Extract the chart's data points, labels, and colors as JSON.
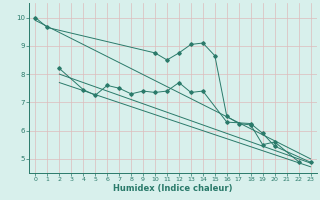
{
  "xlabel": "Humidex (Indice chaleur)",
  "bg_color": "#d8f0ec",
  "grid_color": "#ddbcbc",
  "line_color": "#2a7a6a",
  "xlim": [
    -0.5,
    23.5
  ],
  "ylim": [
    4.5,
    10.5
  ],
  "xticks": [
    0,
    1,
    2,
    3,
    4,
    5,
    6,
    7,
    8,
    9,
    10,
    11,
    12,
    13,
    14,
    15,
    16,
    17,
    18,
    19,
    20,
    21,
    22,
    23
  ],
  "yticks": [
    5,
    6,
    7,
    8,
    9,
    10
  ],
  "series1_x": [
    0,
    1,
    10,
    11,
    12,
    13,
    14,
    15,
    16,
    17,
    18,
    19,
    20,
    22
  ],
  "series1_y": [
    10.0,
    9.65,
    8.75,
    8.5,
    8.75,
    9.05,
    9.1,
    8.65,
    6.5,
    6.25,
    6.2,
    5.5,
    5.6,
    4.9
  ],
  "series2_x": [
    2,
    4,
    5,
    6,
    7,
    8,
    9,
    10,
    11,
    12,
    13,
    14,
    16,
    18,
    19,
    20,
    23
  ],
  "series2_y": [
    8.2,
    7.45,
    7.25,
    7.6,
    7.5,
    7.3,
    7.4,
    7.35,
    7.4,
    7.7,
    7.35,
    7.4,
    6.3,
    6.25,
    5.9,
    5.45,
    4.88
  ],
  "line1_x": [
    0,
    23
  ],
  "line1_y": [
    9.9,
    5.0
  ],
  "line2_x": [
    2,
    23
  ],
  "line2_y": [
    8.0,
    4.85
  ],
  "line3_x": [
    2,
    23
  ],
  "line3_y": [
    7.7,
    4.72
  ]
}
